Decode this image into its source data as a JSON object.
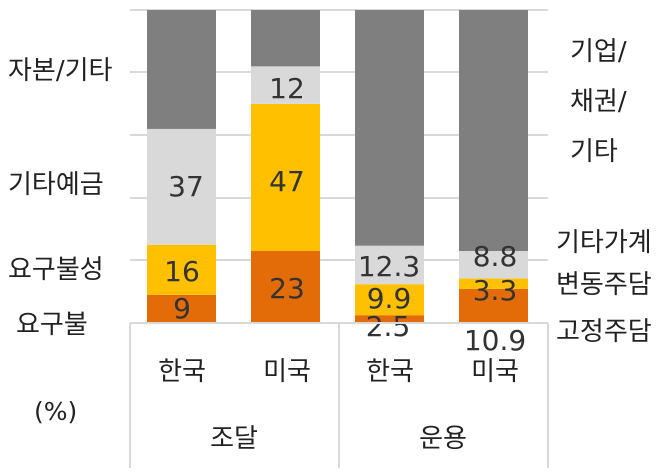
{
  "chart_data": {
    "type": "bar",
    "stacked": true,
    "y_unit_label": "(%)",
    "ylim": [
      0,
      100
    ],
    "groups": [
      {
        "name": "조달",
        "categories": [
          "한국",
          "미국"
        ]
      },
      {
        "name": "운용",
        "categories": [
          "한국",
          "미국"
        ]
      }
    ],
    "bars": [
      {
        "group": "조달",
        "category": "한국",
        "segments": [
          {
            "name": "요구불",
            "value": 9,
            "label": "9",
            "color": "#E36C09"
          },
          {
            "name": "요구불성",
            "value": 16,
            "label": "16",
            "color": "#FFC000"
          },
          {
            "name": "기타예금",
            "value": 37,
            "label": "37",
            "color": "#D9D9D9"
          },
          {
            "name": "자본/기타",
            "value": 38,
            "label": "",
            "color": "#7F7F7F"
          }
        ]
      },
      {
        "group": "조달",
        "category": "미국",
        "segments": [
          {
            "name": "요구불",
            "value": 23,
            "label": "23",
            "color": "#E36C09"
          },
          {
            "name": "요구불성",
            "value": 47,
            "label": "47",
            "color": "#FFC000"
          },
          {
            "name": "기타예금",
            "value": 12,
            "label": "12",
            "color": "#D9D9D9"
          },
          {
            "name": "자본/기타",
            "value": 18,
            "label": "",
            "color": "#7F7F7F"
          }
        ]
      },
      {
        "group": "운용",
        "category": "한국",
        "segments": [
          {
            "name": "고정주담",
            "value": 2.5,
            "label": "2.5",
            "color": "#E36C09"
          },
          {
            "name": "변동주담",
            "value": 9.9,
            "label": "9.9",
            "color": "#FFC000"
          },
          {
            "name": "기타가계",
            "value": 12.3,
            "label": "12.3",
            "color": "#D9D9D9"
          },
          {
            "name": "기업/채권/기타",
            "value": 75.3,
            "label": "",
            "color": "#7F7F7F"
          }
        ]
      },
      {
        "group": "운용",
        "category": "미국",
        "segments": [
          {
            "name": "고정주담",
            "value": 10.9,
            "label": "10.9",
            "color": "#E36C09"
          },
          {
            "name": "변동주담",
            "value": 3.3,
            "label": "3.3",
            "color": "#FFC000"
          },
          {
            "name": "기타가계",
            "value": 8.8,
            "label": "8.8",
            "color": "#D9D9D9"
          },
          {
            "name": "기업/채권/기타",
            "value": 77.0,
            "label": "",
            "color": "#7F7F7F"
          }
        ]
      }
    ],
    "left_labels": [
      "자본/기타",
      "기타예금",
      "요구불성",
      "요구불"
    ],
    "right_labels": [
      "기업/",
      "채권/",
      "기타",
      "기타가계",
      "변동주담",
      "고정주담"
    ],
    "gridlines": true,
    "colors": {
      "grid": "#D9D9D9",
      "text": "#222222",
      "value_text": "#333333"
    }
  }
}
